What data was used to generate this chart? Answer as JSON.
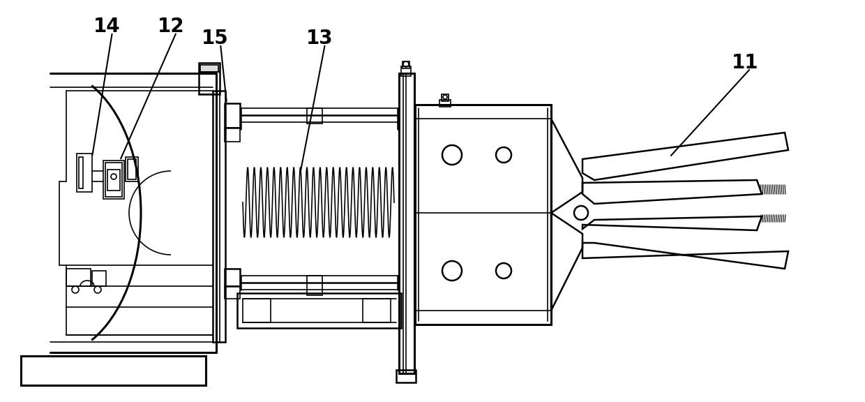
{
  "bg_color": "#ffffff",
  "line_color": "#000000",
  "lw_thin": 1.2,
  "lw_med": 1.8,
  "lw_thick": 2.2,
  "label_fontsize": 20,
  "figsize": [
    12.4,
    5.76
  ],
  "dpi": 100
}
